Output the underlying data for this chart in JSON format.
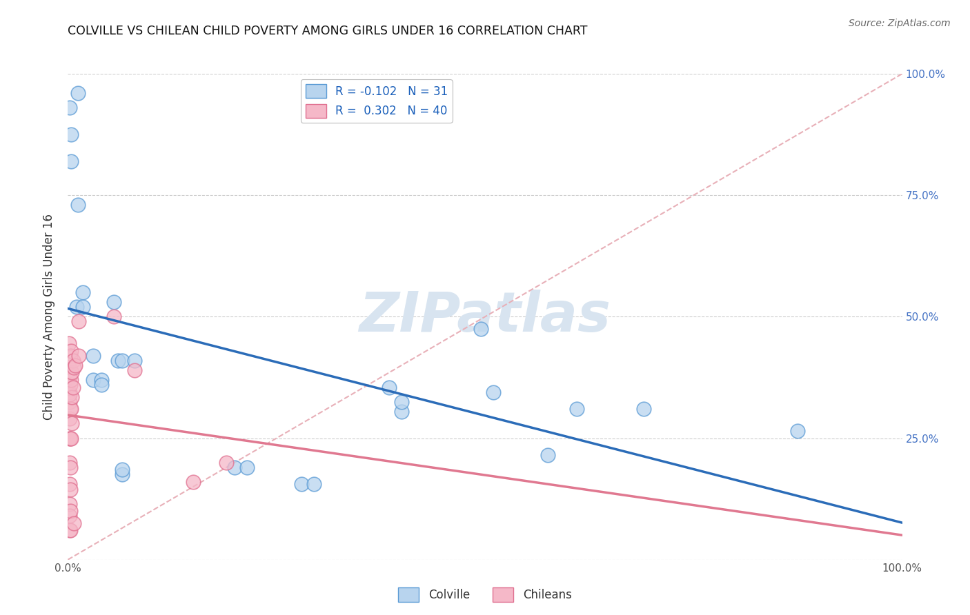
{
  "title": "COLVILLE VS CHILEAN CHILD POVERTY AMONG GIRLS UNDER 16 CORRELATION CHART",
  "source": "Source: ZipAtlas.com",
  "ylabel": "Child Poverty Among Girls Under 16",
  "colville_R": -0.102,
  "colville_N": 31,
  "chileans_R": 0.302,
  "chileans_N": 40,
  "colville_color": "#b8d4ee",
  "chileans_color": "#f5b8c8",
  "colville_edge_color": "#5b9bd5",
  "chileans_edge_color": "#e07090",
  "colville_line_color": "#2b6cb8",
  "chileans_line_color": "#e07890",
  "diagonal_color": "#e8b0b8",
  "colville_points": [
    [
      0.002,
      0.93
    ],
    [
      0.004,
      0.875
    ],
    [
      0.004,
      0.82
    ],
    [
      0.012,
      0.96
    ],
    [
      0.012,
      0.73
    ],
    [
      0.01,
      0.52
    ],
    [
      0.018,
      0.55
    ],
    [
      0.018,
      0.52
    ],
    [
      0.03,
      0.42
    ],
    [
      0.03,
      0.37
    ],
    [
      0.04,
      0.37
    ],
    [
      0.04,
      0.36
    ],
    [
      0.055,
      0.53
    ],
    [
      0.06,
      0.41
    ],
    [
      0.065,
      0.175
    ],
    [
      0.065,
      0.185
    ],
    [
      0.065,
      0.41
    ],
    [
      0.08,
      0.41
    ],
    [
      0.2,
      0.19
    ],
    [
      0.215,
      0.19
    ],
    [
      0.28,
      0.155
    ],
    [
      0.295,
      0.155
    ],
    [
      0.385,
      0.355
    ],
    [
      0.4,
      0.305
    ],
    [
      0.4,
      0.325
    ],
    [
      0.495,
      0.475
    ],
    [
      0.51,
      0.345
    ],
    [
      0.575,
      0.215
    ],
    [
      0.61,
      0.31
    ],
    [
      0.69,
      0.31
    ],
    [
      0.875,
      0.265
    ]
  ],
  "chileans_points": [
    [
      0.001,
      0.445
    ],
    [
      0.001,
      0.395
    ],
    [
      0.002,
      0.375
    ],
    [
      0.002,
      0.345
    ],
    [
      0.002,
      0.325
    ],
    [
      0.002,
      0.38
    ],
    [
      0.002,
      0.34
    ],
    [
      0.002,
      0.29
    ],
    [
      0.002,
      0.25
    ],
    [
      0.002,
      0.2
    ],
    [
      0.002,
      0.155
    ],
    [
      0.002,
      0.115
    ],
    [
      0.002,
      0.09
    ],
    [
      0.002,
      0.06
    ],
    [
      0.003,
      0.42
    ],
    [
      0.003,
      0.36
    ],
    [
      0.003,
      0.31
    ],
    [
      0.003,
      0.25
    ],
    [
      0.003,
      0.19
    ],
    [
      0.003,
      0.145
    ],
    [
      0.003,
      0.1
    ],
    [
      0.003,
      0.06
    ],
    [
      0.004,
      0.43
    ],
    [
      0.004,
      0.37
    ],
    [
      0.004,
      0.31
    ],
    [
      0.004,
      0.25
    ],
    [
      0.005,
      0.385
    ],
    [
      0.005,
      0.335
    ],
    [
      0.005,
      0.28
    ],
    [
      0.006,
      0.41
    ],
    [
      0.006,
      0.355
    ],
    [
      0.007,
      0.395
    ],
    [
      0.007,
      0.075
    ],
    [
      0.009,
      0.4
    ],
    [
      0.013,
      0.42
    ],
    [
      0.013,
      0.49
    ],
    [
      0.055,
      0.5
    ],
    [
      0.08,
      0.39
    ],
    [
      0.15,
      0.16
    ],
    [
      0.19,
      0.2
    ]
  ],
  "yticks": [
    0.0,
    0.25,
    0.5,
    0.75,
    1.0
  ],
  "ytick_labels_right": [
    "",
    "25.0%",
    "50.0%",
    "75.0%",
    "100.0%"
  ],
  "watermark_color": "#d8e4f0",
  "background_color": "#ffffff",
  "grid_color": "#cccccc"
}
